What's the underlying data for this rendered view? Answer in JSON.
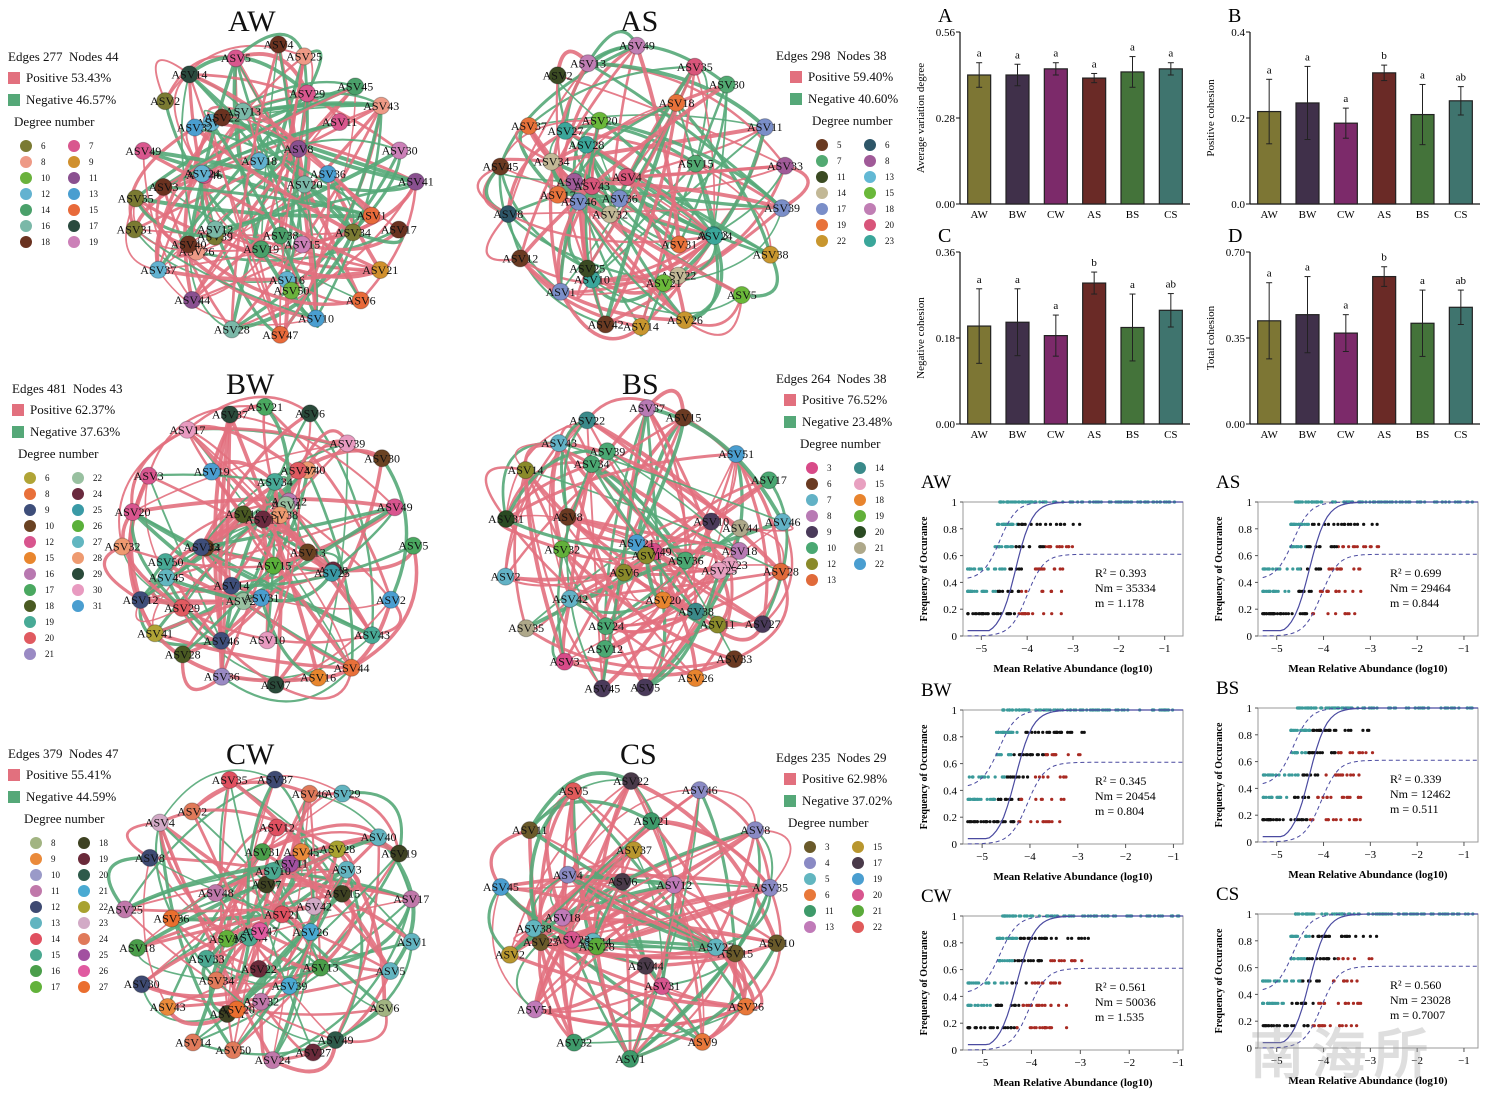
{
  "networks": [
    {
      "id": "AW",
      "title": "AW",
      "edges_label": "Edges 277",
      "nodes_label": "Nodes  44",
      "positive_label": "Positive 53.43%",
      "negative_label": "Negative 46.57%",
      "degree_title": "Degree number",
      "degrees": [
        {
          "v": "6",
          "c": "#7a7a32"
        },
        {
          "v": "7",
          "c": "#d9578e"
        },
        {
          "v": "8",
          "c": "#ee9a86"
        },
        {
          "v": "9",
          "c": "#d0902e"
        },
        {
          "v": "10",
          "c": "#6ab23c"
        },
        {
          "v": "11",
          "c": "#8a5090"
        },
        {
          "v": "12",
          "c": "#62b2d0"
        },
        {
          "v": "13",
          "c": "#4a9ed0"
        },
        {
          "v": "14",
          "c": "#4aa06a"
        },
        {
          "v": "15",
          "c": "#e86a3a"
        },
        {
          "v": "16",
          "c": "#7ab8a8"
        },
        {
          "v": "17",
          "c": "#2a4a3e"
        },
        {
          "v": "18",
          "c": "#6a3220"
        },
        {
          "v": "19",
          "c": "#cc80b8"
        }
      ],
      "pos_ratio": 0.5343,
      "nodes": [
        "ASV4",
        "ASV25",
        "ASV45",
        "ASV43",
        "ASV30",
        "ASV41",
        "ASV17",
        "ASV21",
        "ASV6",
        "ASV10",
        "ASV47",
        "ASV28",
        "ASV44",
        "ASV37",
        "ASV31",
        "ASV35",
        "ASV49",
        "ASV2",
        "ASV14",
        "ASV5",
        "ASV39",
        "ASV26",
        "ASV12",
        "ASV38",
        "ASV18",
        "ASV16",
        "ASV29",
        "ASV11",
        "ASV13",
        "ASV3",
        "ASV19",
        "ASV15",
        "ASV7",
        "ASV50",
        "ASV36",
        "ASV46",
        "ASV1",
        "ASV40",
        "ASV24",
        "ASV34",
        "ASV8",
        "ASV20",
        "ASV22",
        "ASV32"
      ]
    },
    {
      "id": "AS",
      "title": "AS",
      "edges_label": "Edges 298",
      "nodes_label": "Nodes  38",
      "positive_label": "Positive 59.40%",
      "negative_label": "Negative 40.60%",
      "degree_title": "Degree number",
      "degrees": [
        {
          "v": "5",
          "c": "#6a3a22"
        },
        {
          "v": "6",
          "c": "#2e5668"
        },
        {
          "v": "7",
          "c": "#52aa72"
        },
        {
          "v": "8",
          "c": "#a05a98"
        },
        {
          "v": "11",
          "c": "#3a4a22"
        },
        {
          "v": "13",
          "c": "#62b8d4"
        },
        {
          "v": "14",
          "c": "#c2b896"
        },
        {
          "v": "15",
          "c": "#6ab83a"
        },
        {
          "v": "17",
          "c": "#7a8ec8"
        },
        {
          "v": "18",
          "c": "#c07eb4"
        },
        {
          "v": "19",
          "c": "#e8723a"
        },
        {
          "v": "20",
          "c": "#d8557a"
        },
        {
          "v": "22",
          "c": "#c8962e"
        },
        {
          "v": "23",
          "c": "#3aa69a"
        }
      ],
      "pos_ratio": 0.594,
      "nodes": [
        "ASV49",
        "ASV35",
        "ASV30",
        "ASV11",
        "ASV33",
        "ASV39",
        "ASV38",
        "ASV5",
        "ASV26",
        "ASV14",
        "ASV42",
        "ASV1",
        "ASV12",
        "ASV8",
        "ASV45",
        "ASV37",
        "ASV2",
        "ASV13",
        "ASV22",
        "ASV10",
        "ASV27",
        "ASV36",
        "ASV32",
        "ASV44",
        "ASV46",
        "ASV25",
        "ASV3",
        "ASV4",
        "ASV43",
        "ASV20",
        "ASV31",
        "ASV21",
        "ASV34",
        "ASV17",
        "ASV18",
        "ASV24",
        "ASV15",
        "ASV28"
      ]
    },
    {
      "id": "BW",
      "title": "BW",
      "edges_label": "Edges 481",
      "nodes_label": "Nodes  43",
      "positive_label": "Positive 62.37%",
      "negative_label": "Negative 37.63%",
      "degree_title": "Degree number",
      "degrees": [
        {
          "v": "6",
          "c": "#b0a436"
        },
        {
          "v": "8",
          "c": "#e8703a"
        },
        {
          "v": "9",
          "c": "#3e4e7a"
        },
        {
          "v": "10",
          "c": "#6a4222"
        },
        {
          "v": "12",
          "c": "#d8558e"
        },
        {
          "v": "15",
          "c": "#e8862e"
        },
        {
          "v": "16",
          "c": "#b878b0"
        },
        {
          "v": "17",
          "c": "#4aa860"
        },
        {
          "v": "18",
          "c": "#4a5a22"
        },
        {
          "v": "19",
          "c": "#48aa96"
        },
        {
          "v": "20",
          "c": "#e05a60"
        },
        {
          "v": "21",
          "c": "#9a8ac4"
        },
        {
          "v": "22",
          "c": "#98c0a0"
        },
        {
          "v": "24",
          "c": "#6a2a3e"
        },
        {
          "v": "25",
          "c": "#3a9aa6"
        },
        {
          "v": "26",
          "c": "#5ab03a"
        },
        {
          "v": "27",
          "c": "#62b6c0"
        },
        {
          "v": "28",
          "c": "#ee9a70"
        },
        {
          "v": "29",
          "c": "#2a4a3a"
        },
        {
          "v": "30",
          "c": "#e89ac0"
        },
        {
          "v": "31",
          "c": "#4a9ed0"
        }
      ],
      "pos_ratio": 0.6237,
      "nodes": [
        "ASV21",
        "ASV6",
        "ASV39",
        "ASV30",
        "ASV49",
        "ASV5",
        "ASV2",
        "ASV43",
        "ASV44",
        "ASV16",
        "ASV7",
        "ASV36",
        "ASV28",
        "ASV41",
        "ASV12",
        "ASV32",
        "ASV20",
        "ASV3",
        "ASV17",
        "ASV37",
        "ASV22",
        "ASV4",
        "ASV29",
        "ASV40",
        "ASV10",
        "ASV50",
        "ASV14",
        "ASV24",
        "ASV46",
        "ASV1",
        "ASV8",
        "ASV31",
        "ASV45",
        "ASV34",
        "ASV18",
        "ASV19",
        "ASV47",
        "ASV38",
        "ASV11",
        "ASV33",
        "ASV25",
        "ASV13",
        "ASV15"
      ]
    },
    {
      "id": "BS",
      "title": "BS",
      "edges_label": "Edges 264",
      "nodes_label": "Nodes  38",
      "positive_label": "Positive 76.52%",
      "negative_label": "Negative 23.48%",
      "degree_title": "Degree number",
      "degrees": [
        {
          "v": "3",
          "c": "#d84a88"
        },
        {
          "v": "6",
          "c": "#6a3a22"
        },
        {
          "v": "7",
          "c": "#62b2c6"
        },
        {
          "v": "8",
          "c": "#b87ab4"
        },
        {
          "v": "9",
          "c": "#4a3a5a"
        },
        {
          "v": "10",
          "c": "#4aa872"
        },
        {
          "v": "12",
          "c": "#8a8a2a"
        },
        {
          "v": "13",
          "c": "#e06a3a"
        },
        {
          "v": "14",
          "c": "#3a8a8a"
        },
        {
          "v": "15",
          "c": "#e8a0c0"
        },
        {
          "v": "18",
          "c": "#e8842e"
        },
        {
          "v": "19",
          "c": "#62b03a"
        },
        {
          "v": "20",
          "c": "#2a4a22"
        },
        {
          "v": "21",
          "c": "#aea88a"
        },
        {
          "v": "22",
          "c": "#4a9ed0"
        }
      ],
      "pos_ratio": 0.7652,
      "nodes": [
        "ASV37",
        "ASV15",
        "ASV51",
        "ASV17",
        "ASV46",
        "ASV28",
        "ASV27",
        "ASV33",
        "ASV26",
        "ASV5",
        "ASV45",
        "ASV3",
        "ASV35",
        "ASV2",
        "ASV31",
        "ASV14",
        "ASV43",
        "ASV22",
        "ASV12",
        "ASV20",
        "ASV23",
        "ASV8",
        "ASV42",
        "ASV11",
        "ASV49",
        "ASV21",
        "ASV34",
        "ASV25",
        "ASV38",
        "ASV44",
        "ASV10",
        "ASV24",
        "ASV6",
        "ASV36",
        "ASV32",
        "ASV1",
        "ASV39",
        "ASV18"
      ]
    },
    {
      "id": "CW",
      "title": "CW",
      "edges_label": "Edges 379",
      "nodes_label": "Nodes  47",
      "positive_label": "Positive 55.41%",
      "negative_label": "Negative 44.59%",
      "degree_title": "Degree number",
      "degrees": [
        {
          "v": "8",
          "c": "#a2b482"
        },
        {
          "v": "9",
          "c": "#ea8a3a"
        },
        {
          "v": "10",
          "c": "#9a9ac8"
        },
        {
          "v": "11",
          "c": "#c078aa"
        },
        {
          "v": "12",
          "c": "#3e4a72"
        },
        {
          "v": "13",
          "c": "#62b4c0"
        },
        {
          "v": "14",
          "c": "#e05060"
        },
        {
          "v": "15",
          "c": "#4aa890"
        },
        {
          "v": "16",
          "c": "#4a9e4a"
        },
        {
          "v": "17",
          "c": "#62b23a"
        },
        {
          "v": "18",
          "c": "#3e4222"
        },
        {
          "v": "19",
          "c": "#6a2a3a"
        },
        {
          "v": "20",
          "c": "#2e5a4a"
        },
        {
          "v": "21",
          "c": "#4aaad2"
        },
        {
          "v": "22",
          "c": "#a8a230"
        },
        {
          "v": "23",
          "c": "#d2aac6"
        },
        {
          "v": "24",
          "c": "#e07a5a"
        },
        {
          "v": "25",
          "c": "#a250a0"
        },
        {
          "v": "26",
          "c": "#e05aa0"
        },
        {
          "v": "27",
          "c": "#ea6e2e"
        }
      ],
      "pos_ratio": 0.5541,
      "nodes": [
        "ASV37",
        "ASV46",
        "ASV29",
        "ASV40",
        "ASV19",
        "ASV17",
        "ASV1",
        "ASV5",
        "ASV6",
        "ASV49",
        "ASV27",
        "ASV24",
        "ASV50",
        "ASV14",
        "ASV43",
        "ASV30",
        "ASV18",
        "ASV25",
        "ASV8",
        "ASV4",
        "ASV2",
        "ASV35",
        "ASV33",
        "ASV16",
        "ASV11",
        "ASV7",
        "ASV15",
        "ASV12",
        "ASV42",
        "ASV13",
        "ASV45",
        "ASV44",
        "ASV22",
        "ASV41",
        "ASV47",
        "ASV10",
        "ASV48",
        "ASV39",
        "ASV3",
        "ASV21",
        "ASV32",
        "ASV26",
        "ASV31",
        "ASV28",
        "ASV36",
        "ASV20",
        "ASV34"
      ]
    },
    {
      "id": "CS",
      "title": "CS",
      "edges_label": "Edges 235",
      "nodes_label": "Nodes  29",
      "positive_label": "Positive 62.98%",
      "negative_label": "Negative 37.02%",
      "degree_title": "Degree number",
      "degrees": [
        {
          "v": "3",
          "c": "#6a5a2a"
        },
        {
          "v": "4",
          "c": "#8a8ac4"
        },
        {
          "v": "5",
          "c": "#62b6c0"
        },
        {
          "v": "6",
          "c": "#e8783a"
        },
        {
          "v": "11",
          "c": "#3e9a6a"
        },
        {
          "v": "13",
          "c": "#c07ab8"
        },
        {
          "v": "15",
          "c": "#b8962e"
        },
        {
          "v": "17",
          "c": "#4a3a4a"
        },
        {
          "v": "19",
          "c": "#4a9ed0"
        },
        {
          "v": "20",
          "c": "#d8558e"
        },
        {
          "v": "21",
          "c": "#5aaa3a"
        },
        {
          "v": "22",
          "c": "#e05a5a"
        }
      ],
      "pos_ratio": 0.6298,
      "nodes": [
        "ASV22",
        "ASV46",
        "ASV8",
        "ASV35",
        "ASV10",
        "ASV26",
        "ASV9",
        "ASV1",
        "ASV32",
        "ASV51",
        "ASV2",
        "ASV45",
        "ASV11",
        "ASV5",
        "ASV31",
        "ASV18",
        "ASV25",
        "ASV15",
        "ASV24",
        "ASV27",
        "ASV23",
        "ASV6",
        "ASV28",
        "ASV37",
        "ASV4",
        "ASV12",
        "ASV44",
        "ASV38",
        "ASV21"
      ]
    }
  ],
  "colors": {
    "positive": "#e2707e",
    "negative": "#55a878"
  },
  "chart_data": [
    {
      "type": "bar",
      "panel": "A",
      "title": "A",
      "ylabel": "Average variation degree",
      "categories": [
        "AW",
        "BW",
        "CW",
        "AS",
        "BS",
        "CS"
      ],
      "values": [
        0.42,
        0.42,
        0.44,
        0.41,
        0.43,
        0.44
      ],
      "errors": [
        0.04,
        0.035,
        0.02,
        0.015,
        0.05,
        0.02
      ],
      "letters": [
        "a",
        "a",
        "a",
        "a",
        "a",
        "a"
      ],
      "ylim": [
        0,
        0.56
      ],
      "yticks": [
        "0.00",
        "0.28",
        "0.56"
      ],
      "colors": [
        "#7d7634",
        "#40304a",
        "#7c2a6a",
        "#6a2a26",
        "#44733a",
        "#3f746e"
      ]
    },
    {
      "type": "bar",
      "panel": "B",
      "title": "B",
      "ylabel": "Positive cohesion",
      "categories": [
        "AW",
        "BW",
        "CW",
        "AS",
        "BS",
        "CS"
      ],
      "values": [
        0.215,
        0.235,
        0.188,
        0.305,
        0.208,
        0.24
      ],
      "errors": [
        0.075,
        0.085,
        0.035,
        0.018,
        0.07,
        0.033
      ],
      "letters": [
        "a",
        "a",
        "a",
        "b",
        "a",
        "ab"
      ],
      "ylim": [
        0,
        0.4
      ],
      "yticks": [
        "0.0",
        "0.2",
        "0.4"
      ],
      "colors": [
        "#7d7634",
        "#40304a",
        "#7c2a6a",
        "#6a2a26",
        "#44733a",
        "#3f746e"
      ]
    },
    {
      "type": "bar",
      "panel": "C",
      "title": "C",
      "ylabel": "Negative cohesion",
      "categories": [
        "AW",
        "BW",
        "CW",
        "AS",
        "BS",
        "CS"
      ],
      "values": [
        0.205,
        0.213,
        0.185,
        0.295,
        0.202,
        0.238
      ],
      "errors": [
        0.078,
        0.07,
        0.043,
        0.023,
        0.07,
        0.035
      ],
      "letters": [
        "a",
        "a",
        "a",
        "b",
        "a",
        "ab"
      ],
      "ylim": [
        0,
        0.36
      ],
      "yticks": [
        "0.00",
        "0.18",
        "0.36"
      ],
      "colors": [
        "#7d7634",
        "#40304a",
        "#7c2a6a",
        "#6a2a26",
        "#44733a",
        "#3f746e"
      ]
    },
    {
      "type": "bar",
      "panel": "D",
      "title": "D",
      "ylabel": "Total cohesion",
      "categories": [
        "AW",
        "BW",
        "CW",
        "AS",
        "BS",
        "CS"
      ],
      "values": [
        0.42,
        0.445,
        0.37,
        0.6,
        0.41,
        0.475
      ],
      "errors": [
        0.155,
        0.155,
        0.075,
        0.04,
        0.135,
        0.07
      ],
      "letters": [
        "a",
        "a",
        "a",
        "b",
        "a",
        "ab"
      ],
      "ylim": [
        0,
        0.7
      ],
      "yticks": [
        "0.00",
        "0.35",
        "0.70"
      ],
      "colors": [
        "#7d7634",
        "#40304a",
        "#7c2a6a",
        "#6a2a26",
        "#44733a",
        "#3f746e"
      ]
    },
    {
      "type": "scatter",
      "panel": "AW",
      "title": "AW",
      "xlabel": "Mean Relative Abundance (log10)",
      "ylabel": "Frequency of Occurance",
      "xlim": [
        -5.4,
        -0.6
      ],
      "ylim": [
        0,
        1
      ],
      "xticks": [
        "−5",
        "−4",
        "−3",
        "−2",
        "−1"
      ],
      "yticks": [
        "0",
        "0.2",
        "0.4",
        "0.6",
        "0.8",
        "1"
      ],
      "r2": "R² = 0.393",
      "nm": "Nm = 35334",
      "m": "m = 1.178",
      "fit_mid": -4.25,
      "fit_k": 5.5,
      "xmax_pt": -0.7
    },
    {
      "type": "scatter",
      "panel": "AS",
      "title": "AS",
      "xlabel": "Mean Relative Abundance (log10)",
      "ylabel": "Frequency of Occurance",
      "xlim": [
        -5.4,
        -0.7
      ],
      "ylim": [
        0,
        1
      ],
      "xticks": [
        "−5",
        "−4",
        "−3",
        "−2",
        "−1"
      ],
      "yticks": [
        "0",
        "0.2",
        "0.4",
        "0.6",
        "0.8",
        "1"
      ],
      "r2": "R² = 0.699",
      "nm": "Nm = 29464",
      "m": "m = 0.844",
      "fit_mid": -4.3,
      "fit_k": 5.5,
      "xmax_pt": -0.8
    },
    {
      "type": "scatter",
      "panel": "BW",
      "title": "BW",
      "xlabel": "Mean Relative Abundance (log10)",
      "ylabel": "Frequency of Occurance",
      "xlim": [
        -5.4,
        -0.8
      ],
      "ylim": [
        0,
        1
      ],
      "xticks": [
        "−5",
        "−4",
        "−3",
        "−2",
        "−1"
      ],
      "yticks": [
        "0",
        "0.2",
        "0.4",
        "0.6",
        "0.8",
        "1"
      ],
      "r2": "R² = 0.345",
      "nm": "Nm = 20454",
      "m": "m = 0.804",
      "fit_mid": -4.3,
      "fit_k": 5.5,
      "xmax_pt": -0.9
    },
    {
      "type": "scatter",
      "panel": "BS",
      "title": "BS",
      "xlabel": "Mean Relative Abundance (log10)",
      "ylabel": "Frequency of Occurance",
      "xlim": [
        -5.4,
        -0.7
      ],
      "ylim": [
        0,
        1
      ],
      "xticks": [
        "−5",
        "−4",
        "−3",
        "−2",
        "−1"
      ],
      "yticks": [
        "0",
        "0.2",
        "0.4",
        "0.6",
        "0.8",
        "1"
      ],
      "r2": "R² = 0.339",
      "nm": "Nm = 12462",
      "m": "m = 0.511",
      "fit_mid": -4.3,
      "fit_k": 5.5,
      "xmax_pt": -0.8
    },
    {
      "type": "scatter",
      "panel": "CW",
      "title": "CW",
      "xlabel": "Mean Relative Abundance (log10)",
      "ylabel": "Frequency of Occurance",
      "xlim": [
        -5.4,
        -0.9
      ],
      "ylim": [
        0,
        1
      ],
      "xticks": [
        "−5",
        "−4",
        "−3",
        "−2",
        "−1"
      ],
      "yticks": [
        "0",
        "0.2",
        "0.4",
        "0.6",
        "0.8",
        "1"
      ],
      "r2": "R² = 0.561",
      "nm": "Nm = 50036",
      "m": "m = 1.535",
      "fit_mid": -4.3,
      "fit_k": 5.5,
      "xmax_pt": -0.95
    },
    {
      "type": "scatter",
      "panel": "CS",
      "title": "CS",
      "xlabel": "Mean Relative Abundance (log10)",
      "ylabel": "Frequency of Occurance",
      "xlim": [
        -5.4,
        -0.7
      ],
      "ylim": [
        0,
        1
      ],
      "xticks": [
        "−5",
        "−4",
        "−3",
        "−2",
        "−1"
      ],
      "yticks": [
        "0",
        "0.2",
        "0.4",
        "0.6",
        "0.8",
        "1"
      ],
      "r2": "R² = 0.560",
      "nm": "Nm = 23028",
      "m": "m = 0.7007",
      "fit_mid": -4.3,
      "fit_k": 5.5,
      "xmax_pt": -0.8
    }
  ],
  "watermark": "南海所"
}
